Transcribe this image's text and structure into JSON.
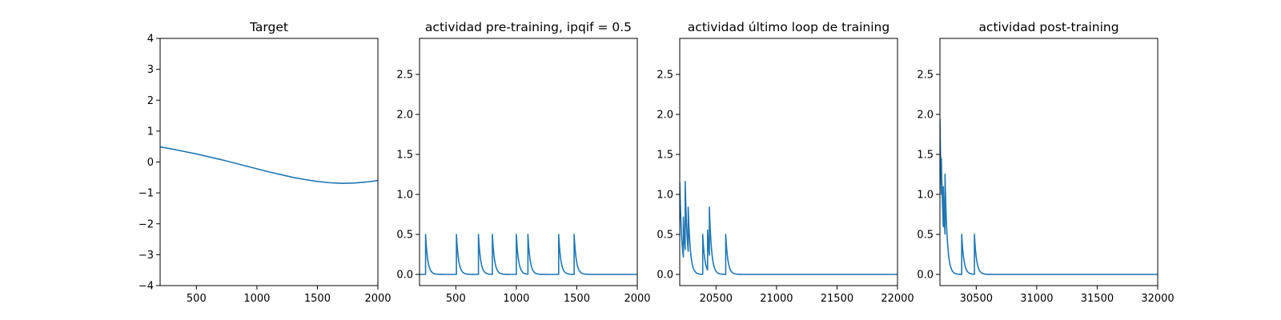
{
  "chart_data": [
    {
      "type": "line",
      "title": "Target",
      "xlabel": "",
      "ylabel": "",
      "xlim": [
        200,
        2000
      ],
      "ylim": [
        -4,
        4
      ],
      "xticks": [
        500,
        1000,
        1500,
        2000
      ],
      "yticks": [
        -4,
        -3,
        -2,
        -1,
        0,
        1,
        2,
        3,
        4
      ],
      "xtick_labels": [
        "500",
        "1000",
        "1500",
        "2000"
      ],
      "ytick_labels": [
        "−4",
        "−3",
        "−2",
        "−1",
        "0",
        "1",
        "2",
        "3",
        "4"
      ],
      "grid": false,
      "series": [
        {
          "x": [
            200,
            300,
            400,
            500,
            600,
            700,
            800,
            900,
            1000,
            1100,
            1200,
            1300,
            1400,
            1500,
            1600,
            1700,
            1800,
            1900,
            2000
          ],
          "y": [
            0.49,
            0.42,
            0.34,
            0.26,
            0.17,
            0.08,
            -0.02,
            -0.12,
            -0.22,
            -0.32,
            -0.41,
            -0.5,
            -0.57,
            -0.63,
            -0.67,
            -0.69,
            -0.68,
            -0.65,
            -0.6
          ]
        }
      ]
    },
    {
      "type": "line",
      "title": "actividad pre-training, ipqif = 0.5",
      "xlabel": "",
      "ylabel": "",
      "xlim": [
        200,
        2000
      ],
      "ylim": [
        -0.14,
        2.95
      ],
      "xticks": [
        500,
        1000,
        1500,
        2000
      ],
      "yticks": [
        0.0,
        0.5,
        1.0,
        1.5,
        2.0,
        2.5
      ],
      "xtick_labels": [
        "500",
        "1000",
        "1500",
        "2000"
      ],
      "ytick_labels": [
        "0.0",
        "0.5",
        "1.0",
        "1.5",
        "2.0",
        "2.5"
      ],
      "grid": false,
      "series": [
        {
          "x_start": 200,
          "x_end": 2000,
          "baseline": 0,
          "tau": 18,
          "spikes": [
            {
              "x": 250,
              "height": 0.5
            },
            {
              "x": 505,
              "height": 0.5
            },
            {
              "x": 687,
              "height": 0.5
            },
            {
              "x": 802,
              "height": 0.5
            },
            {
              "x": 1000,
              "height": 0.5
            },
            {
              "x": 1096,
              "height": 0.5
            },
            {
              "x": 1350,
              "height": 0.5
            },
            {
              "x": 1478,
              "height": 0.5
            }
          ]
        }
      ]
    },
    {
      "type": "line",
      "title": "actividad último loop de training",
      "xlabel": "",
      "ylabel": "",
      "xlim": [
        20200,
        22000
      ],
      "ylim": [
        -0.14,
        2.95
      ],
      "xticks": [
        20500,
        21000,
        21500,
        22000
      ],
      "yticks": [
        0.0,
        0.5,
        1.0,
        1.5,
        2.0,
        2.5
      ],
      "xtick_labels": [
        "20500",
        "21000",
        "21500",
        "22000"
      ],
      "ytick_labels": [
        "0.0",
        "0.5",
        "1.0",
        "1.5",
        "2.0",
        "2.5"
      ],
      "grid": false,
      "series": [
        {
          "x_start": 20200,
          "x_end": 22000,
          "baseline": 0,
          "tau": 18,
          "initial": 1.15,
          "spikes": [
            {
              "x": 20230,
              "height": 0.5
            },
            {
              "x": 20245,
              "height": 0.85
            },
            {
              "x": 20270,
              "height": 0.55
            },
            {
              "x": 20390,
              "height": 0.5
            },
            {
              "x": 20430,
              "height": 0.5
            },
            {
              "x": 20445,
              "height": 0.6
            },
            {
              "x": 20580,
              "height": 0.5
            }
          ]
        }
      ]
    },
    {
      "type": "line",
      "title": "actividad post-training",
      "xlabel": "",
      "ylabel": "",
      "xlim": [
        30200,
        32000
      ],
      "ylim": [
        -0.14,
        2.95
      ],
      "xticks": [
        30500,
        31000,
        31500,
        32000
      ],
      "yticks": [
        0.0,
        0.5,
        1.0,
        1.5,
        2.0,
        2.5
      ],
      "xtick_labels": [
        "30500",
        "31000",
        "31500",
        "32000"
      ],
      "ytick_labels": [
        "0.0",
        "0.5",
        "1.0",
        "1.5",
        "2.0",
        "2.5"
      ],
      "grid": false,
      "series": [
        {
          "x_start": 30200,
          "x_end": 32000,
          "baseline": 0,
          "tau": 18,
          "initial": 1.95,
          "spikes": [
            {
              "x": 30212,
              "height": 0.45
            },
            {
              "x": 30228,
              "height": 0.5
            },
            {
              "x": 30242,
              "height": 0.75
            },
            {
              "x": 30380,
              "height": 0.5
            },
            {
              "x": 30485,
              "height": 0.5
            }
          ]
        }
      ]
    }
  ]
}
